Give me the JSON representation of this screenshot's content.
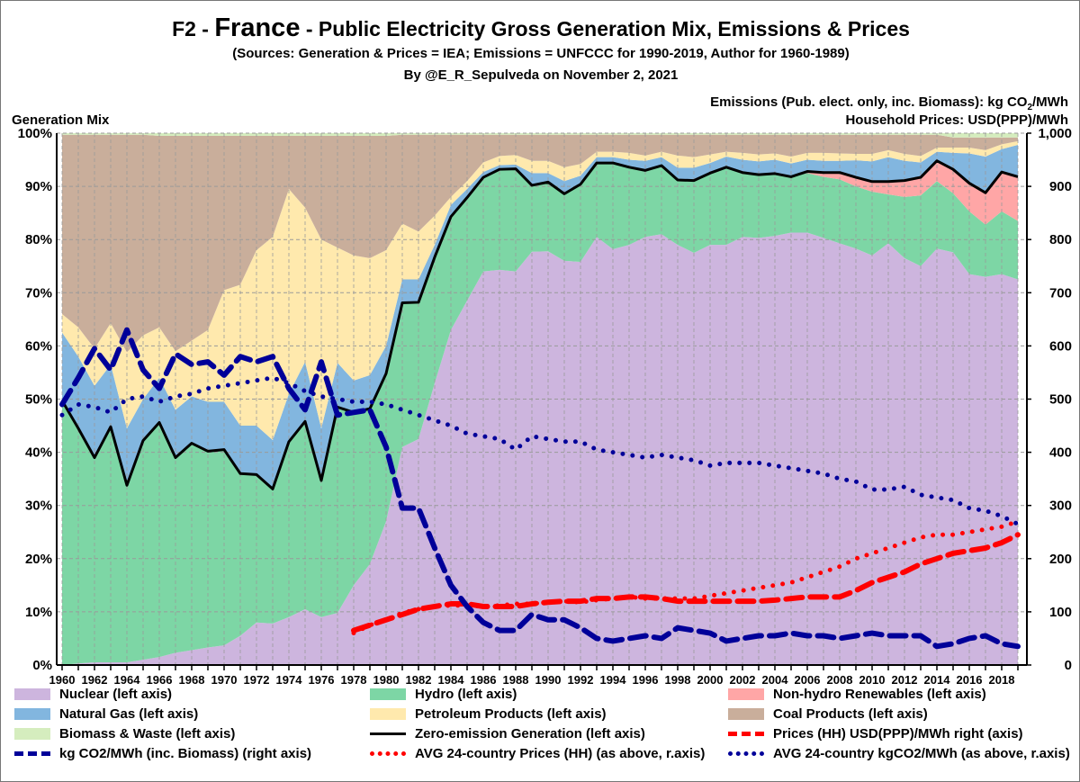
{
  "title": {
    "prefix": "F2 - ",
    "country": "France",
    "suffix": " - Public Electricity Gross Generation Mix, Emissions & Prices"
  },
  "subtitle1": "(Sources: Generation & Prices = IEA; Emissions = UNFCCC for 1990-2019,  Author for 1960-1989)",
  "subtitle2": "By @E_R_Sepulveda on November 2, 2021",
  "chart_data": {
    "type": "area",
    "title": "France - Public Electricity Gross Generation Mix, Emissions & Prices",
    "ylabel_left": "Generation Mix",
    "ylabel_right_1": "Emissions (Pub. elect. only, inc. Biomass): kg CO2/MWh",
    "ylabel_right_2": "Household Prices: USD(PPP)/MWh",
    "ylim_left": [
      0,
      100
    ],
    "ylim_right": [
      0,
      1000
    ],
    "left_ticks": [
      "0%",
      "10%",
      "20%",
      "30%",
      "40%",
      "50%",
      "60%",
      "70%",
      "80%",
      "90%",
      "100%"
    ],
    "right_ticks": [
      "0",
      "100",
      "200",
      "300",
      "400",
      "500",
      "600",
      "700",
      "800",
      "900",
      "1,000"
    ],
    "x_start": 1960,
    "x_end": 2019,
    "x_ticks": [
      "1960",
      "1962",
      "1964",
      "1966",
      "1968",
      "1970",
      "1972",
      "1974",
      "1976",
      "1978",
      "1980",
      "1982",
      "1984",
      "1986",
      "1988",
      "1990",
      "1992",
      "1994",
      "1996",
      "1998",
      "2000",
      "2002",
      "2004",
      "2006",
      "2008",
      "2010",
      "2012",
      "2014",
      "2016",
      "2018"
    ],
    "grid": true,
    "legend_position": "bottom",
    "stacked_series": [
      {
        "name": "Nuclear (left axis)",
        "color": "#CDB5DE",
        "values": [
          0,
          0.3,
          0.5,
          0.5,
          0.5,
          1,
          1.5,
          2.3,
          2.8,
          3.3,
          3.7,
          5.5,
          8,
          7.8,
          9,
          10.5,
          9,
          9.8,
          15,
          19,
          27,
          41,
          42.5,
          53,
          63,
          68.5,
          74,
          74.3,
          74,
          77.7,
          77.8,
          76,
          75.8,
          80.5,
          78.2,
          79,
          80.5,
          81,
          79,
          77.5,
          79,
          79,
          80.5,
          80.3,
          80.7,
          81.3,
          81.3,
          80.3,
          79.3,
          78.3,
          77,
          79.3,
          76.5,
          75,
          78.3,
          77.6,
          73.5,
          73,
          73.5,
          72.5
        ]
      },
      {
        "name": "Hydro (left axis)",
        "color": "#7DD6A5",
        "values": [
          49.7,
          44.2,
          38.5,
          44.3,
          33.3,
          41.2,
          44.1,
          36.7,
          38.9,
          36.9,
          36.8,
          30.5,
          27.8,
          25.3,
          33,
          35.3,
          25.7,
          38.7,
          32.5,
          29.2,
          27.8,
          27.1,
          25.7,
          23.7,
          21.3,
          19.4,
          17.7,
          18.9,
          19.3,
          12.5,
          13,
          12.6,
          14.6,
          13.9,
          16.2,
          14.6,
          12.5,
          12.9,
          12.2,
          13.6,
          13.5,
          14.6,
          12.1,
          11.9,
          11.7,
          10.5,
          11.2,
          11.5,
          12,
          11.7,
          12,
          9.2,
          11.5,
          13.3,
          12.7,
          11.1,
          11.8,
          9.8,
          11.8,
          11
        ]
      },
      {
        "name": "Non-hydro Renewables (left axis)",
        "color": "#FFA6A6",
        "values": [
          0,
          0,
          0,
          0,
          0,
          0,
          0,
          0,
          0,
          0,
          0,
          0,
          0,
          0,
          0,
          0,
          0,
          0,
          0,
          0,
          0,
          0,
          0,
          0,
          0,
          0,
          0,
          0,
          0,
          0,
          0,
          0,
          0,
          0,
          0,
          0,
          0,
          0,
          0,
          0,
          0,
          0,
          0,
          0,
          0,
          0,
          0.3,
          0.8,
          1.3,
          1.7,
          1.9,
          2.4,
          3.1,
          3.4,
          3.8,
          4.5,
          5.3,
          6,
          7.4,
          8.3
        ]
      },
      {
        "name": "Natural Gas (left axis)",
        "color": "#82B6DF",
        "values": [
          12.8,
          13.5,
          13.5,
          11.7,
          10.7,
          7.8,
          8.4,
          9,
          8.8,
          9.3,
          9,
          9,
          9.2,
          9.2,
          9,
          11.2,
          9.8,
          8.3,
          6,
          6.3,
          5.2,
          4.4,
          4.3,
          2.3,
          2.2,
          1.6,
          1,
          0.8,
          0.8,
          2.3,
          1.7,
          2.4,
          1.6,
          1.1,
          1.1,
          1.4,
          1.8,
          1.6,
          2.3,
          2.4,
          1.9,
          2,
          2.4,
          2.5,
          2.6,
          2.5,
          2.2,
          2.2,
          2.2,
          3.2,
          3.8,
          4.6,
          3.7,
          2.8,
          1.7,
          3.1,
          5.6,
          6.8,
          4.3,
          6
        ]
      },
      {
        "name": "Petroleum Products (left axis)",
        "color": "#FFE9AD",
        "values": [
          3.5,
          5.5,
          7,
          7.8,
          14.3,
          12,
          9.5,
          11,
          10.5,
          13.5,
          21,
          26.5,
          33,
          38.2,
          38.5,
          29,
          35.5,
          21.7,
          23.5,
          22,
          18,
          10.5,
          9,
          5.5,
          1.5,
          1.5,
          1.8,
          1.7,
          1.8,
          2.3,
          2.3,
          2.6,
          2.2,
          1,
          1,
          1.3,
          1,
          1,
          2.3,
          2,
          1.6,
          0.9,
          1.3,
          1.3,
          1.2,
          1.3,
          1.3,
          1.5,
          1.4,
          1.2,
          1.4,
          1.3,
          1.3,
          1.2,
          0.8,
          1,
          1.1,
          1.2,
          0.9,
          0.7
        ]
      },
      {
        "name": "Coal Products (left axis)",
        "color": "#C9AE9B",
        "values": [
          33.7,
          36.2,
          40.2,
          35.4,
          40.9,
          37.7,
          36,
          40.5,
          38.5,
          36.5,
          29,
          28,
          21.5,
          19,
          10,
          13.5,
          19.5,
          21,
          22.5,
          23,
          21.5,
          16.7,
          18.2,
          15.2,
          11.7,
          8.7,
          5.2,
          4,
          3.8,
          4.9,
          4.9,
          6.1,
          5.5,
          3.2,
          3.2,
          3.4,
          3.9,
          3.2,
          3.9,
          4.2,
          3.7,
          3.2,
          3.4,
          3.7,
          3.5,
          4.1,
          3.4,
          3.4,
          3.5,
          3.6,
          3.6,
          2.9,
          3.6,
          4,
          2.4,
          1.9,
          1.9,
          2.4,
          1.3,
          0.7
        ]
      },
      {
        "name": "Biomass & Waste (left axis)",
        "color": "#D5EDBE",
        "values": [
          0.3,
          0.3,
          0.3,
          0.3,
          0.3,
          0.3,
          0.5,
          0.5,
          0.5,
          0.5,
          0.5,
          0.5,
          0.5,
          0.5,
          0.5,
          0.5,
          0.5,
          0.5,
          0.5,
          0.5,
          0.5,
          0.3,
          0.3,
          0.3,
          0.3,
          0.3,
          0.3,
          0.3,
          0.3,
          0.3,
          0.3,
          0.3,
          0.3,
          0.3,
          0.3,
          0.3,
          0.3,
          0.3,
          0.3,
          0.3,
          0.3,
          0.3,
          0.3,
          0.3,
          0.3,
          0.3,
          0.3,
          0.3,
          0.3,
          0.3,
          0.3,
          0.3,
          0.3,
          0.3,
          0.3,
          0.8,
          0.8,
          0.8,
          0.8,
          0.8
        ]
      }
    ],
    "line_series": [
      {
        "name": "Zero-emission Generation (left axis)",
        "axis": "left",
        "color": "#000000",
        "style": "solid",
        "start": 1960,
        "values": [
          49.7,
          44.5,
          39,
          44.8,
          33.8,
          42.2,
          45.6,
          39,
          41.7,
          40.2,
          40.5,
          36,
          35.8,
          33.1,
          42,
          45.8,
          34.7,
          48.5,
          47.5,
          48.2,
          54.8,
          68.1,
          68.2,
          76.7,
          84.3,
          87.9,
          91.7,
          93.2,
          93.3,
          90.2,
          90.8,
          88.6,
          90.4,
          94.4,
          94.4,
          93.6,
          93,
          93.9,
          91.2,
          91.1,
          92.5,
          93.6,
          92.6,
          92.2,
          92.4,
          91.8,
          92.8,
          92.6,
          92.6,
          91.7,
          90.9,
          90.9,
          91.1,
          91.7,
          94.8,
          93.2,
          90.6,
          88.8,
          92.7,
          91.8
        ]
      },
      {
        "name": "Prices (HH) USD(PPP)/MWh right (axis)",
        "axis": "right",
        "color": "#FF0000",
        "style": "dash",
        "start": 1978,
        "values": [
          65,
          75,
          85,
          95,
          105,
          110,
          115,
          115,
          110,
          110,
          110,
          115,
          118,
          120,
          120,
          125,
          125,
          128,
          128,
          125,
          120,
          120,
          120,
          120,
          120,
          120,
          122,
          125,
          128,
          128,
          128,
          140,
          155,
          165,
          175,
          190,
          200,
          210,
          215,
          220,
          230,
          245
        ]
      },
      {
        "name": "kg CO2/MWh (inc. Biomass) (right axis)",
        "axis": "right",
        "color": "#000099",
        "style": "dash",
        "start": 1960,
        "values": [
          490,
          540,
          595,
          555,
          630,
          555,
          520,
          585,
          565,
          570,
          545,
          580,
          570,
          580,
          520,
          480,
          570,
          470,
          475,
          480,
          410,
          295,
          295,
          220,
          150,
          110,
          80,
          65,
          65,
          95,
          85,
          85,
          70,
          50,
          45,
          50,
          55,
          50,
          70,
          65,
          60,
          45,
          50,
          55,
          55,
          60,
          55,
          55,
          50,
          55,
          60,
          55,
          55,
          55,
          35,
          40,
          50,
          55,
          40,
          35
        ]
      },
      {
        "name": "AVG 24-country Prices (HH) (as above, r.axis)",
        "axis": "right",
        "color": "#FF0000",
        "style": "dot",
        "start": 1978,
        "values": [
          60,
          75,
          85,
          98,
          105,
          110,
          112,
          112,
          110,
          112,
          115,
          115,
          118,
          120,
          118,
          122,
          125,
          128,
          125,
          125,
          125,
          125,
          130,
          135,
          140,
          145,
          150,
          155,
          165,
          175,
          185,
          200,
          210,
          220,
          230,
          240,
          245,
          245,
          250,
          255,
          260,
          270
        ]
      },
      {
        "name": "AVG 24-country kgCO2/MWh (as above, r.axis)",
        "axis": "right",
        "color": "#000099",
        "style": "dot",
        "start": 1960,
        "values": [
          470,
          490,
          485,
          475,
          500,
          505,
          495,
          505,
          510,
          520,
          525,
          530,
          535,
          540,
          530,
          515,
          505,
          500,
          495,
          495,
          490,
          480,
          470,
          460,
          450,
          435,
          430,
          425,
          405,
          430,
          425,
          420,
          420,
          405,
          400,
          395,
          390,
          395,
          390,
          385,
          375,
          380,
          380,
          380,
          375,
          370,
          365,
          360,
          350,
          345,
          330,
          330,
          335,
          320,
          315,
          310,
          295,
          290,
          280,
          265
        ]
      }
    ]
  },
  "header": {
    "gen_label": "Generation Mix",
    "em_label_a": "Emissions (Pub. elect. only, inc. Biomass): kg CO",
    "em_label_sub": "2",
    "em_label_b": "/MWh",
    "price_label": "Household Prices: USD(PPP)/MWh"
  }
}
